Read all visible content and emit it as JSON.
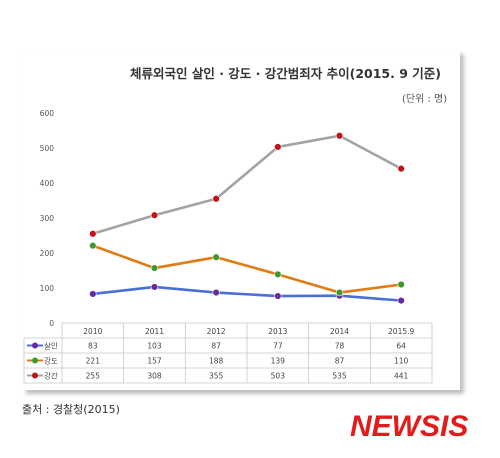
{
  "header": {
    "title": "체류외국인 살인 · 강도 · 강간범죄자 추이(2015. 9 기준)",
    "unit": "(단위 : 명)"
  },
  "footer": {
    "source": "출처 : 경찰청(2015)",
    "logo": "NEWSIS"
  },
  "chart_data": {
    "type": "line",
    "title": "체류외국인 살인 · 강도 · 강간범죄자 추이(2015. 9 기준)",
    "xlabel": "",
    "ylabel": "",
    "categories": [
      "2010",
      "2011",
      "2012",
      "2013",
      "2014",
      "2015.9"
    ],
    "ylim": [
      0,
      600
    ],
    "yticks": [
      "0",
      "100",
      "200",
      "300",
      "400",
      "500",
      "600"
    ],
    "grid": false,
    "legend": "data-table",
    "series": [
      {
        "name": "살인",
        "color": "#4a6fd4",
        "marker": "#6a2aa0",
        "values": [
          83,
          103,
          87,
          77,
          78,
          64
        ]
      },
      {
        "name": "강도",
        "color": "#e37b12",
        "marker": "#3e9a2a",
        "values": [
          221,
          157,
          188,
          139,
          87,
          110
        ]
      },
      {
        "name": "강간",
        "color": "#a3a3a3",
        "marker": "#c0141a",
        "values": [
          255,
          308,
          355,
          503,
          535,
          441
        ]
      }
    ],
    "table_values": [
      [
        "83",
        "103",
        "87",
        "77",
        "78",
        "64"
      ],
      [
        "221",
        "157",
        "188",
        "139",
        "87",
        "110"
      ],
      [
        "255",
        "308",
        "355",
        "503",
        "535",
        "441"
      ]
    ]
  }
}
